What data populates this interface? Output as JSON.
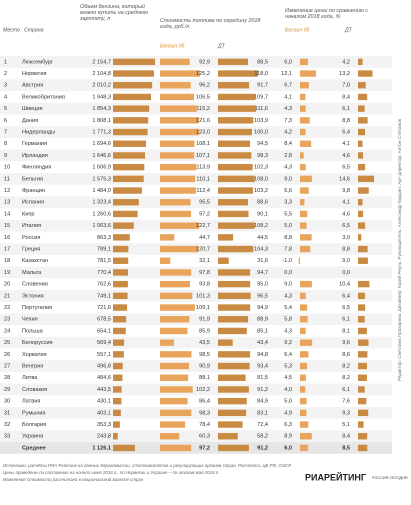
{
  "chart_data": {
    "type": "bar",
    "rank_header": "Место",
    "country_header": "Страна",
    "price_header": "Стоимость топлива по середину 2018 года, руб./л",
    "change_header": "Изменение цены по сравнению с началом 2018 года, %",
    "ranks": [
      "1",
      "2",
      "3",
      "4",
      "5",
      "6",
      "7",
      "8",
      "9",
      "10",
      "11",
      "12",
      "13",
      "14",
      "15",
      "16",
      "17",
      "18",
      "19",
      "20",
      "21",
      "22",
      "23",
      "24",
      "25",
      "26",
      "27",
      "28",
      "29",
      "30",
      "31",
      "32",
      "33"
    ],
    "categories": [
      "Люксембург",
      "Норвегия",
      "Австрия",
      "Великобритания",
      "Швеция",
      "Дания",
      "Нидерланды",
      "Германия",
      "Ирландия",
      "Финляндия",
      "Бельгия",
      "Франция",
      "Испания",
      "Кипр",
      "Италия",
      "Россия",
      "Греция",
      "Казахстан",
      "Мальта",
      "Словения",
      "Эстония",
      "Португалия",
      "Чехия",
      "Польша",
      "Белоруссия",
      "Хорватия",
      "Венгрия",
      "Литва",
      "Словакия",
      "Латвия",
      "Румыния",
      "Болгария",
      "Украина"
    ],
    "series": [
      {
        "name": "Объем бензина, который можно купить на среднюю зарплату, л",
        "color": "#c98a43",
        "values": [
          2154.7,
          2104.8,
          2010.2,
          1948.3,
          1854.3,
          1808.1,
          1771.3,
          1694.6,
          1646.6,
          1606.9,
          1575.3,
          1484.0,
          1323.4,
          1260.6,
          1063.6,
          863.3,
          789.1,
          781.5,
          770.4,
          762.6,
          749.1,
          721.6,
          678.5,
          654.1,
          569.4,
          557.1,
          496.8,
          484.6,
          443.5,
          430.1,
          403.1,
          353.3,
          243.8
        ],
        "value_labels": [
          "2 154,7",
          "2 104,8",
          "2 010,2",
          "1 948,3",
          "1 854,3",
          "1 808,1",
          "1 771,3",
          "1 694,6",
          "1 646,6",
          "1 606,9",
          "1 575,3",
          "1 484,0",
          "1 323,4",
          "1 260,6",
          "1 063,6",
          "863,3",
          "789,1",
          "781,5",
          "770,4",
          "762,6",
          "749,1",
          "721,6",
          "678,5",
          "654,1",
          "569,4",
          "557,1",
          "496,8",
          "484,6",
          "443,5",
          "430,1",
          "403,1",
          "353,3",
          "243,8"
        ]
      },
      {
        "name": "Бензин 95",
        "color": "#e9a45c",
        "values": [
          92.9,
          125.2,
          96.2,
          106.5,
          115.2,
          121.6,
          123.0,
          108.1,
          107.1,
          113.9,
          110.1,
          112.4,
          95.5,
          97.2,
          122.7,
          44.7,
          120.7,
          32.1,
          97.8,
          93.8,
          101.3,
          109.1,
          91.9,
          85.9,
          43.5,
          98.5,
          90.9,
          88.1,
          102.2,
          86.4,
          98.3,
          78.4,
          60.3
        ],
        "value_labels": [
          "92,9",
          "125,2",
          "96,2",
          "106,5",
          "115,2",
          "121,6",
          "123,0",
          "108,1",
          "107,1",
          "113,9",
          "110,1",
          "112,4",
          "95,5",
          "97,2",
          "122,7",
          "44,7",
          "120,7",
          "32,1",
          "97,8",
          "93,8",
          "101,3",
          "109,1",
          "91,9",
          "85,9",
          "43,5",
          "98,5",
          "90,9",
          "88,1",
          "102,2",
          "86,4",
          "98,3",
          "78,4",
          "60,3"
        ]
      },
      {
        "name": "ДТ",
        "color": "#c98a43",
        "values": [
          88.5,
          118.0,
          91.7,
          109.7,
          111.6,
          103.9,
          100.0,
          94.5,
          98.3,
          102.3,
          108.0,
          103.2,
          88.6,
          90.1,
          108.2,
          44.5,
          104.3,
          31.6,
          94.7,
          95.0,
          96.5,
          94.9,
          88.9,
          85.1,
          43.4,
          94.8,
          93.4,
          81.5,
          91.2,
          84.9,
          83.1,
          72.4,
          58.2
        ],
        "value_labels": [
          "88,5",
          "118,0",
          "91,7",
          "109,7",
          "111,6",
          "103,9",
          "100,0",
          "94,5",
          "98,3",
          "102,3",
          "108,0",
          "103,2",
          "88,6",
          "90,1",
          "108,2",
          "44,5",
          "104,3",
          "31,6",
          "94,7",
          "95,0",
          "96,5",
          "94,9",
          "88,9",
          "85,1",
          "43,4",
          "94,8",
          "93,4",
          "81,5",
          "91,2",
          "84,9",
          "83,1",
          "72,4",
          "58,2"
        ]
      },
      {
        "name": "Бензин 95",
        "color": "#e9a45c",
        "values": [
          6.0,
          12.1,
          6.7,
          4.1,
          4.3,
          7.3,
          4.2,
          8.4,
          2.8,
          4.3,
          9.0,
          6.6,
          3.3,
          5.5,
          5.0,
          8.8,
          7.8,
          -1.0,
          0.0,
          9.0,
          4.3,
          5.4,
          5.8,
          4.3,
          9.2,
          6.4,
          5.3,
          4.5,
          4.0,
          5.0,
          4.9,
          6.3,
          8.9
        ],
        "value_labels": [
          "6,0",
          "12,1",
          "6,7",
          "4,1",
          "4,3",
          "7,3",
          "4,2",
          "8,4",
          "2,8",
          "4,3",
          "9,0",
          "6,6",
          "3,3",
          "5,5",
          "5,0",
          "8,8",
          "7,8",
          "-1,0",
          "0,0",
          "9,0",
          "4,3",
          "5,4",
          "5,8",
          "4,3",
          "9,2",
          "6,4",
          "5,3",
          "4,5",
          "4,0",
          "5,0",
          "4,9",
          "6,3",
          "8,9"
        ]
      },
      {
        "name": "ДТ",
        "color": "#c98a43",
        "values": [
          4.2,
          13.2,
          7.0,
          8.4,
          6.1,
          8.8,
          6.4,
          4.1,
          4.6,
          6.5,
          14.6,
          9.8,
          4.1,
          4.6,
          6.5,
          3.0,
          8.8,
          9.0,
          0.0,
          10.4,
          6.4,
          6.5,
          6.1,
          8.1,
          9.6,
          8.6,
          8.2,
          8.2,
          6.1,
          7.6,
          9.3,
          5.1,
          8.4
        ],
        "value_labels": [
          "4,2",
          "13,2",
          "7,0",
          "8,4",
          "6,1",
          "8,8",
          "6,4",
          "4,1",
          "4,6",
          "6,5",
          "14,6",
          "9,8",
          "4,1",
          "4,6",
          "6,5",
          "3,0",
          "8,8",
          "9,0",
          "0,0",
          "10,4",
          "6,4",
          "6,5",
          "6,1",
          "8,1",
          "9,6",
          "8,6",
          "8,2",
          "8,2",
          "6,1",
          "7,6",
          "9,3",
          "5,1",
          "8,4"
        ]
      }
    ],
    "average": {
      "label": "Среднее",
      "values": [
        1126.1,
        97.2,
        91.2,
        6.0,
        8.5
      ],
      "value_labels": [
        "1 126,1",
        "97,2",
        "91,2",
        "6,0",
        "8,5"
      ]
    },
    "notes": [
      "Источники: расчёты РИА Рейтинг на данных Еврокомиссии, статкомитетов и регулирующих органов стран, Росстата, ЦБ РФ, ОЭСР.",
      "Цены приведены по состоянию на начало июня 2018 г., по Норвегии и Украине – по итогам мая 2018 г.",
      "Изменение стоимости рассчитано в национальной валюте стран"
    ],
    "credit": "Редактор: Светлана Прохорова. Дизайнер: Юрий Реуль. Руководитель: Александр Бардин. Арт-директор: Антон Степанов",
    "logo": "РИАРЕЙТИНГ",
    "logo_sub": "РОССИЯ СЕГОДНЯ"
  }
}
